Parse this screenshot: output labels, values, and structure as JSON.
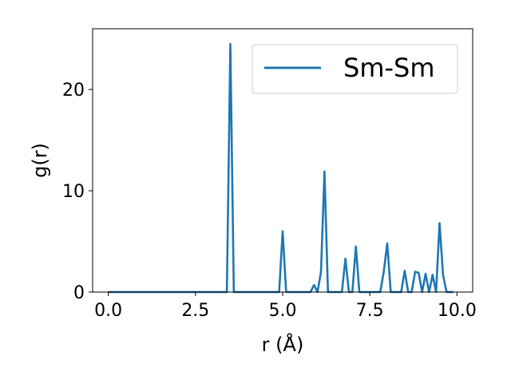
{
  "chart_data": {
    "type": "line",
    "title": "",
    "xlabel": "r (Å)",
    "ylabel": "g(r)",
    "xlim": [
      -0.45,
      10.45
    ],
    "ylim": [
      0,
      26
    ],
    "xticks": [
      0.0,
      2.5,
      5.0,
      7.5,
      10.0
    ],
    "xtick_labels": [
      "0.0",
      "2.5",
      "5.0",
      "7.5",
      "10.0"
    ],
    "yticks": [
      0,
      10,
      20
    ],
    "ytick_labels": [
      "0",
      "10",
      "20"
    ],
    "grid": false,
    "legend": {
      "position": "top-right",
      "entries": [
        "Sm-Sm"
      ]
    },
    "colors": {
      "series": "#1f77b4"
    },
    "series": [
      {
        "name": "Sm-Sm",
        "x": [
          0.0,
          3.4,
          3.5,
          3.6,
          4.9,
          5.0,
          5.1,
          5.8,
          5.9,
          6.0,
          6.1,
          6.2,
          6.3,
          6.7,
          6.8,
          6.9,
          7.0,
          7.1,
          7.2,
          7.8,
          7.9,
          8.0,
          8.1,
          8.4,
          8.5,
          8.6,
          8.7,
          8.8,
          8.9,
          9.0,
          9.1,
          9.2,
          9.3,
          9.4,
          9.5,
          9.6,
          9.7,
          9.9
        ],
        "y": [
          0,
          0,
          24.5,
          0,
          0,
          6.0,
          0,
          0,
          0.7,
          0,
          2.0,
          11.9,
          0,
          0,
          3.3,
          0,
          0,
          4.5,
          0,
          0,
          2.0,
          4.8,
          0,
          0,
          2.1,
          0,
          0,
          2.0,
          1.9,
          0,
          1.8,
          0,
          1.7,
          0,
          6.8,
          1.7,
          0,
          0
        ]
      }
    ]
  }
}
